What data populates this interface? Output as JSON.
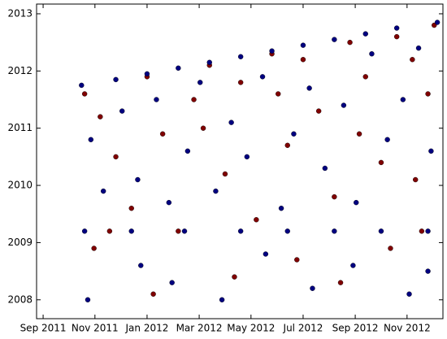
{
  "chart_data": {
    "type": "scatter",
    "xlim": [
      2011.646,
      2012.948
    ],
    "ylim": [
      2007.67,
      2013.17
    ],
    "xticks": [
      {
        "value": 2011.667,
        "label": "Sep 2011"
      },
      {
        "value": 2011.833,
        "label": "Nov 2011"
      },
      {
        "value": 2012.0,
        "label": "Jan 2012"
      },
      {
        "value": 2012.167,
        "label": "Mar 2012"
      },
      {
        "value": 2012.333,
        "label": "May 2012"
      },
      {
        "value": 2012.5,
        "label": "Jul 2012"
      },
      {
        "value": 2012.667,
        "label": "Sep 2012"
      },
      {
        "value": 2012.833,
        "label": "Nov 2012"
      }
    ],
    "yticks": [
      2008,
      2009,
      2010,
      2011,
      2012,
      2013
    ],
    "grid": false,
    "series": [
      {
        "color": "#800000",
        "x": [
          2011.8,
          2011.85,
          2011.9,
          2011.95,
          2012.0,
          2012.05,
          2012.1,
          2012.15,
          2012.2,
          2012.25,
          2012.3,
          2012.35,
          2012.4,
          2012.45,
          2012.5,
          2012.55,
          2012.6,
          2012.65,
          2012.7,
          2012.75,
          2012.8,
          2012.85,
          2012.9,
          2012.92,
          2011.83,
          2012.02,
          2012.28,
          2012.48,
          2012.62,
          2012.78,
          2012.88,
          2011.88,
          2012.18,
          2012.42,
          2012.68,
          2012.86
        ],
        "values": [
          2011.6,
          2011.2,
          2010.5,
          2009.6,
          2011.9,
          2010.9,
          2009.2,
          2011.5,
          2012.1,
          2010.2,
          2011.8,
          2009.4,
          2012.3,
          2010.7,
          2012.2,
          2011.3,
          2009.8,
          2012.5,
          2011.9,
          2010.4,
          2012.6,
          2012.2,
          2011.6,
          2012.8,
          2008.9,
          2008.1,
          2008.4,
          2008.7,
          2008.3,
          2008.9,
          2009.2,
          2009.2,
          2011.0,
          2011.6,
          2010.9,
          2010.1
        ]
      },
      {
        "color": "#000080",
        "x": [
          2011.79,
          2011.9,
          2012.0,
          2012.1,
          2012.2,
          2012.3,
          2012.4,
          2012.5,
          2012.6,
          2012.7,
          2012.8,
          2012.93,
          2011.8,
          2011.95,
          2012.12,
          2012.3,
          2012.45,
          2012.6,
          2012.75,
          2012.9,
          2011.82,
          2011.86,
          2011.92,
          2011.97,
          2012.03,
          2012.07,
          2012.13,
          2012.17,
          2012.22,
          2012.27,
          2012.32,
          2012.37,
          2012.43,
          2012.47,
          2012.52,
          2012.57,
          2012.63,
          2012.67,
          2012.72,
          2012.77,
          2012.82,
          2012.87,
          2012.91,
          2011.81,
          2011.98,
          2012.08,
          2012.24,
          2012.38,
          2012.53,
          2012.66,
          2012.84,
          2012.9
        ],
        "values": [
          2011.75,
          2011.85,
          2011.95,
          2012.05,
          2012.15,
          2012.25,
          2012.35,
          2012.45,
          2012.55,
          2012.65,
          2012.75,
          2012.85,
          2009.2,
          2009.2,
          2009.2,
          2009.2,
          2009.2,
          2009.2,
          2009.2,
          2009.2,
          2010.8,
          2009.9,
          2011.3,
          2010.1,
          2011.5,
          2009.7,
          2010.6,
          2011.8,
          2009.9,
          2011.1,
          2010.5,
          2011.9,
          2009.6,
          2010.9,
          2011.7,
          2010.3,
          2011.4,
          2009.7,
          2012.3,
          2010.8,
          2011.5,
          2012.4,
          2010.6,
          2008.0,
          2008.6,
          2008.3,
          2008.0,
          2008.8,
          2008.2,
          2008.6,
          2008.1,
          2008.5
        ]
      }
    ]
  }
}
